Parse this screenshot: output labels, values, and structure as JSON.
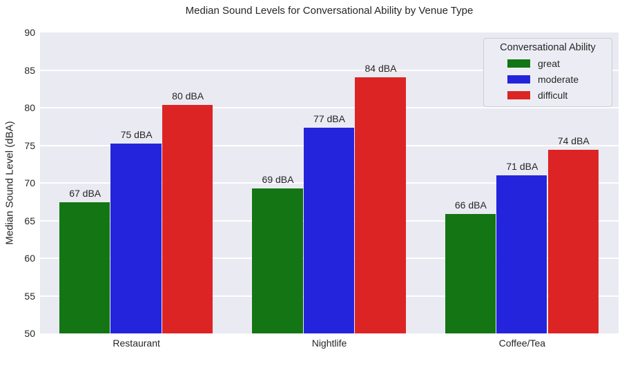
{
  "title": "Median Sound Levels for Conversational Ability by Venue Type",
  "y_axis_label": "Median Sound Level (dBA)",
  "legend": {
    "title": "Conversational Ability",
    "entries": [
      {
        "label": "great",
        "color": "#147514"
      },
      {
        "label": "moderate",
        "color": "#2424dc"
      },
      {
        "label": "difficult",
        "color": "#dc2424"
      }
    ]
  },
  "chart_data": {
    "type": "bar",
    "title": "Median Sound Levels for Conversational Ability by Venue Type",
    "xlabel": "",
    "ylabel": "Median Sound Level (dBA)",
    "categories": [
      "Restaurant",
      "Nightlife",
      "Coffee/Tea"
    ],
    "series": [
      {
        "name": "great",
        "color": "#147514",
        "values": [
          67.4,
          69.3,
          65.9
        ],
        "labels": [
          "67 dBA",
          "69 dBA",
          "66 dBA"
        ]
      },
      {
        "name": "moderate",
        "color": "#2424dc",
        "values": [
          75.2,
          77.3,
          71.0
        ],
        "labels": [
          "75 dBA",
          "77 dBA",
          "71 dBA"
        ]
      },
      {
        "name": "difficult",
        "color": "#dc2424",
        "values": [
          80.4,
          84.0,
          74.4
        ],
        "labels": [
          "80 dBA",
          "84 dBA",
          "74 dBA"
        ]
      }
    ],
    "ylim": [
      50,
      90
    ],
    "yticks": [
      50,
      55,
      60,
      65,
      70,
      75,
      80,
      85,
      90
    ],
    "grid": true,
    "grid_orientation": "horizontal",
    "legend_position": "upper right",
    "style": {
      "plot_background": "#eaeaf2",
      "gridline_color": "#ffffff",
      "text_color": "#262626",
      "legend_background": "#ecedf4",
      "legend_border": "#cacad3"
    }
  }
}
